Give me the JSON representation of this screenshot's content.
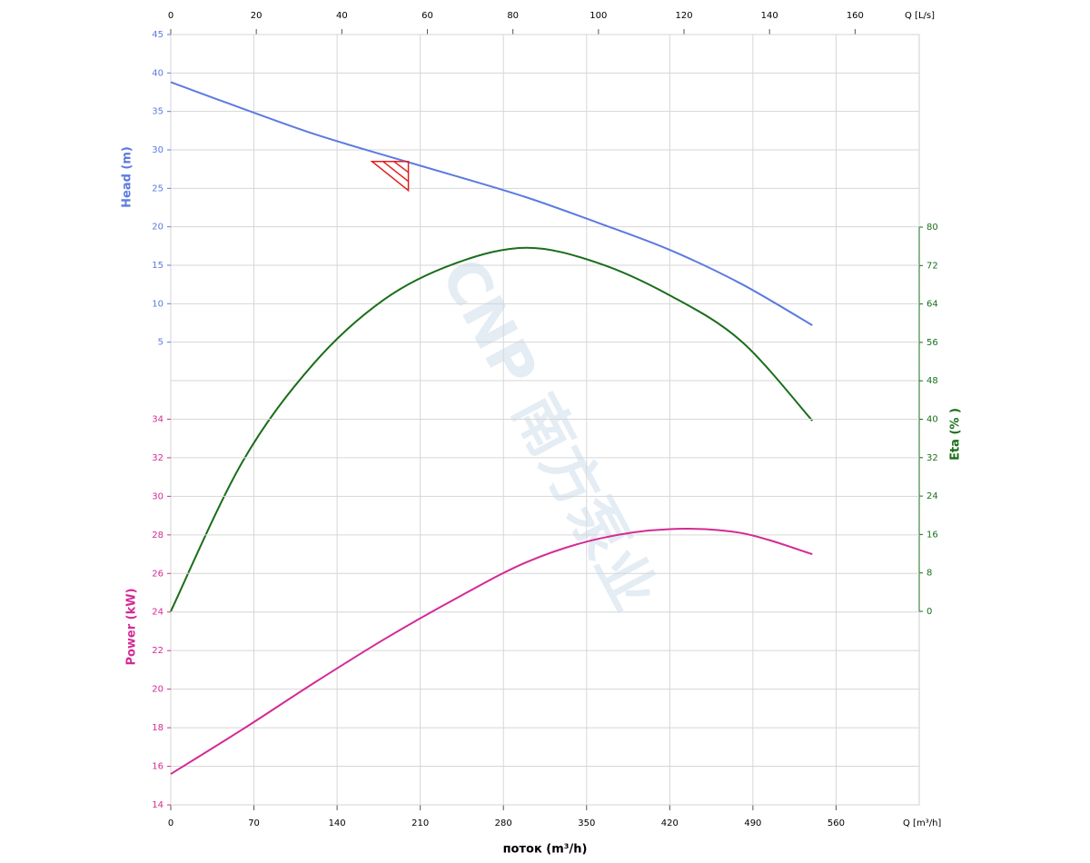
{
  "chart_data": {
    "type": "line",
    "xlabel": "поток (m³/h)",
    "xunit": "Q [m³/h]",
    "x2unit": "Q [L/s]",
    "xlim": [
      0,
      630
    ],
    "xticks": [
      0,
      70,
      140,
      210,
      280,
      350,
      420,
      490,
      560
    ],
    "x2lim": [
      0,
      175
    ],
    "x2ticks": [
      0,
      20,
      40,
      60,
      80,
      100,
      120,
      140,
      160
    ],
    "ylim": [
      0,
      45
    ],
    "yticks": [
      5,
      10,
      15,
      20,
      25,
      30,
      35,
      40,
      45
    ],
    "y2lim": [
      0,
      80
    ],
    "y2ticks": [
      0,
      8,
      16,
      24,
      32,
      40,
      48,
      56,
      64,
      72,
      80
    ],
    "y3lim": [
      14,
      36
    ],
    "y3ticks": [
      14,
      16,
      18,
      20,
      22,
      24,
      26,
      28,
      30,
      32,
      34
    ],
    "grid": true,
    "x": [
      0,
      60,
      120,
      180,
      240,
      300,
      360,
      420,
      480,
      540
    ],
    "series": [
      {
        "name": "Head (m)",
        "color": "#5b7be0",
        "axis": "y",
        "values": [
          38.8,
          35.4,
          32.1,
          29.3,
          26.6,
          23.8,
          20.5,
          17.0,
          12.6,
          7.2
        ]
      },
      {
        "name": "Eta (% )",
        "color": "#1a6e1a",
        "axis": "y2",
        "values": [
          0,
          31,
          51.5,
          65,
          72.5,
          75.7,
          72.5,
          65.8,
          56.3,
          39.7
        ]
      },
      {
        "name": "Power (kW)",
        "color": "#d42a95",
        "axis": "y3",
        "values": [
          15.6,
          17.9,
          20.3,
          22.6,
          24.7,
          26.6,
          27.8,
          28.3,
          28.1,
          27.0
        ]
      }
    ],
    "duty_point": {
      "x": 200,
      "y": 28.5
    }
  },
  "watermark": "CNP 南方泵业"
}
